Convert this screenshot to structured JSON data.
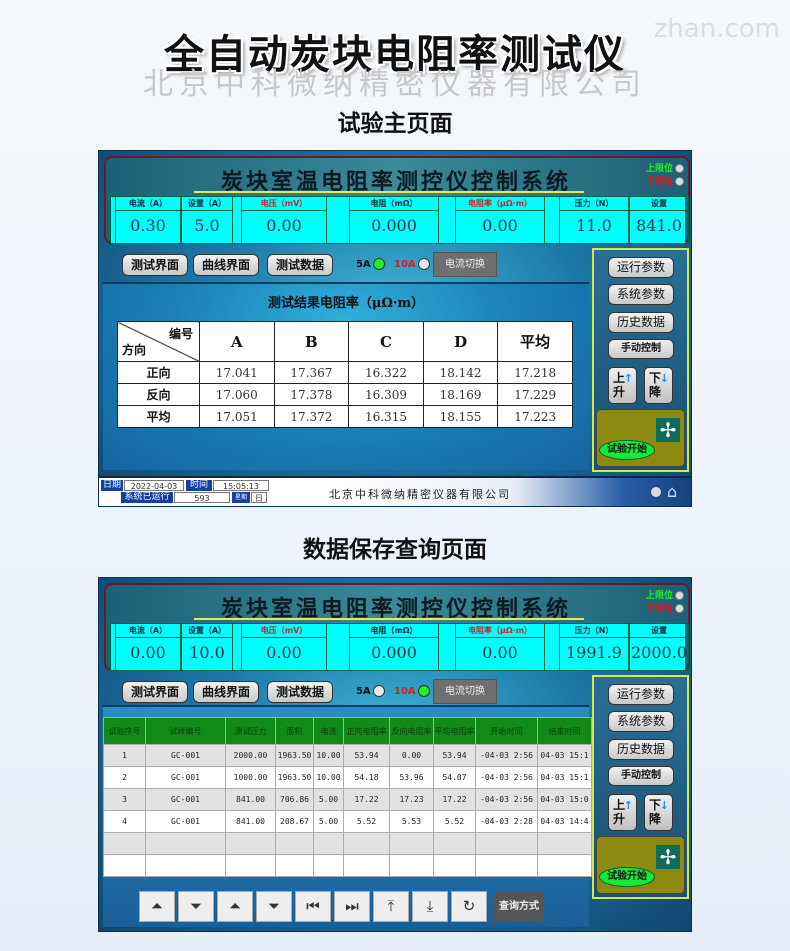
{
  "page": {
    "title": "全自动炭块电阻率测试仪",
    "section1": "试验主页面",
    "section2": "数据保存查询页面",
    "watermark_top": "zhan.com",
    "watermark_mid": "北京中科微纳精密仪器有限公司"
  },
  "header": {
    "title": "炭块室温电阻率测控仪控制系统",
    "upper_limit": "上限位",
    "lower_limit": "下限位"
  },
  "measure_labels": [
    "电流（A）",
    "设置（A）",
    "电压（mV）",
    "电阻（mΩ）",
    "电阻率（μΩ·m）",
    "压力（N）",
    "设置"
  ],
  "screen1": {
    "measure_values": [
      "0.30",
      "5.0",
      "0.00",
      "0.000",
      "0.00",
      "11.0",
      "841.0"
    ],
    "led_5a_on": true,
    "led_10a_on": false,
    "results_title": "测试结果电阻率（μΩ·m）",
    "corner_top": "编号",
    "corner_bottom": "方向",
    "columns": [
      "A",
      "B",
      "C",
      "D",
      "平均"
    ],
    "rows": [
      {
        "label": "正向",
        "values": [
          "17.041",
          "17.367",
          "16.322",
          "18.142",
          "17.218"
        ]
      },
      {
        "label": "反向",
        "values": [
          "17.060",
          "17.378",
          "16.309",
          "18.169",
          "17.229"
        ]
      },
      {
        "label": "平均",
        "values": [
          "17.051",
          "17.372",
          "16.315",
          "18.155",
          "17.223"
        ]
      }
    ],
    "status": {
      "date_label": "日期",
      "date": "2022-04-03",
      "time_label": "时间",
      "time": "15:05:13",
      "run_label": "系统已运行",
      "run_value": "593",
      "unit_label": "星期",
      "unit_value": "日",
      "company": "北京中科微纳精密仪器有限公司"
    }
  },
  "screen2": {
    "measure_values": [
      "0.00",
      "10.0",
      "0.00",
      "0.000",
      "0.00",
      "1991.9",
      "2000.0"
    ],
    "led_5a_on": false,
    "led_10a_on": true,
    "table_headers": [
      "试验序号",
      "试样编号",
      "测试压力",
      "面积",
      "电流",
      "正向电阻率",
      "反向电阻率",
      "平均电阻率",
      "开始时间",
      "结束时间"
    ],
    "table_rows": [
      [
        "1",
        "GC-001",
        "2000.00",
        "1963.50",
        "10.00",
        "53.94",
        "0.00",
        "53.94",
        "-04-03 2:56",
        "04-03 15:1"
      ],
      [
        "2",
        "GC-001",
        "1000.00",
        "1963.50",
        "10.00",
        "54.18",
        "53.96",
        "54.07",
        "-04-03 2:56",
        "04-03 15:1"
      ],
      [
        "3",
        "GC-001",
        "841.00",
        "706.86",
        "5.00",
        "17.22",
        "17.23",
        "17.22",
        "-04-03 2:56",
        "04-03 15:0"
      ],
      [
        "4",
        "GC-001",
        "841.00",
        "208.67",
        "5.00",
        "5.52",
        "5.53",
        "5.52",
        "-04-03 2:28",
        "04-03 14:4"
      ],
      [
        "",
        "",
        "",
        "",
        "",
        "",
        "",
        "",
        "",
        ""
      ],
      [
        "",
        "",
        "",
        "",
        "",
        "",
        "",
        "",
        "",
        ""
      ]
    ],
    "toolbar": [
      "⏶",
      "⏷",
      "⏶",
      "⏷",
      "⏮",
      "⏭",
      "⤒",
      "⤓",
      "↻"
    ],
    "query_label": "查询方式"
  },
  "nav": {
    "test": "测试界面",
    "curve": "曲线界面",
    "data": "测试数据",
    "led_5a": "5A",
    "led_10a": "10A",
    "switch": "电流切换"
  },
  "side": {
    "run_params": "运行参数",
    "sys_params": "系统参数",
    "history": "历史数据",
    "manual": "手动控制",
    "up": "上升",
    "down": "下降",
    "start": "试验开始"
  },
  "colors": {
    "measure_bg": "#00ffff",
    "led_on": "#22ee22",
    "table_header": "#118a1a",
    "side_border": "#d5e84a"
  }
}
